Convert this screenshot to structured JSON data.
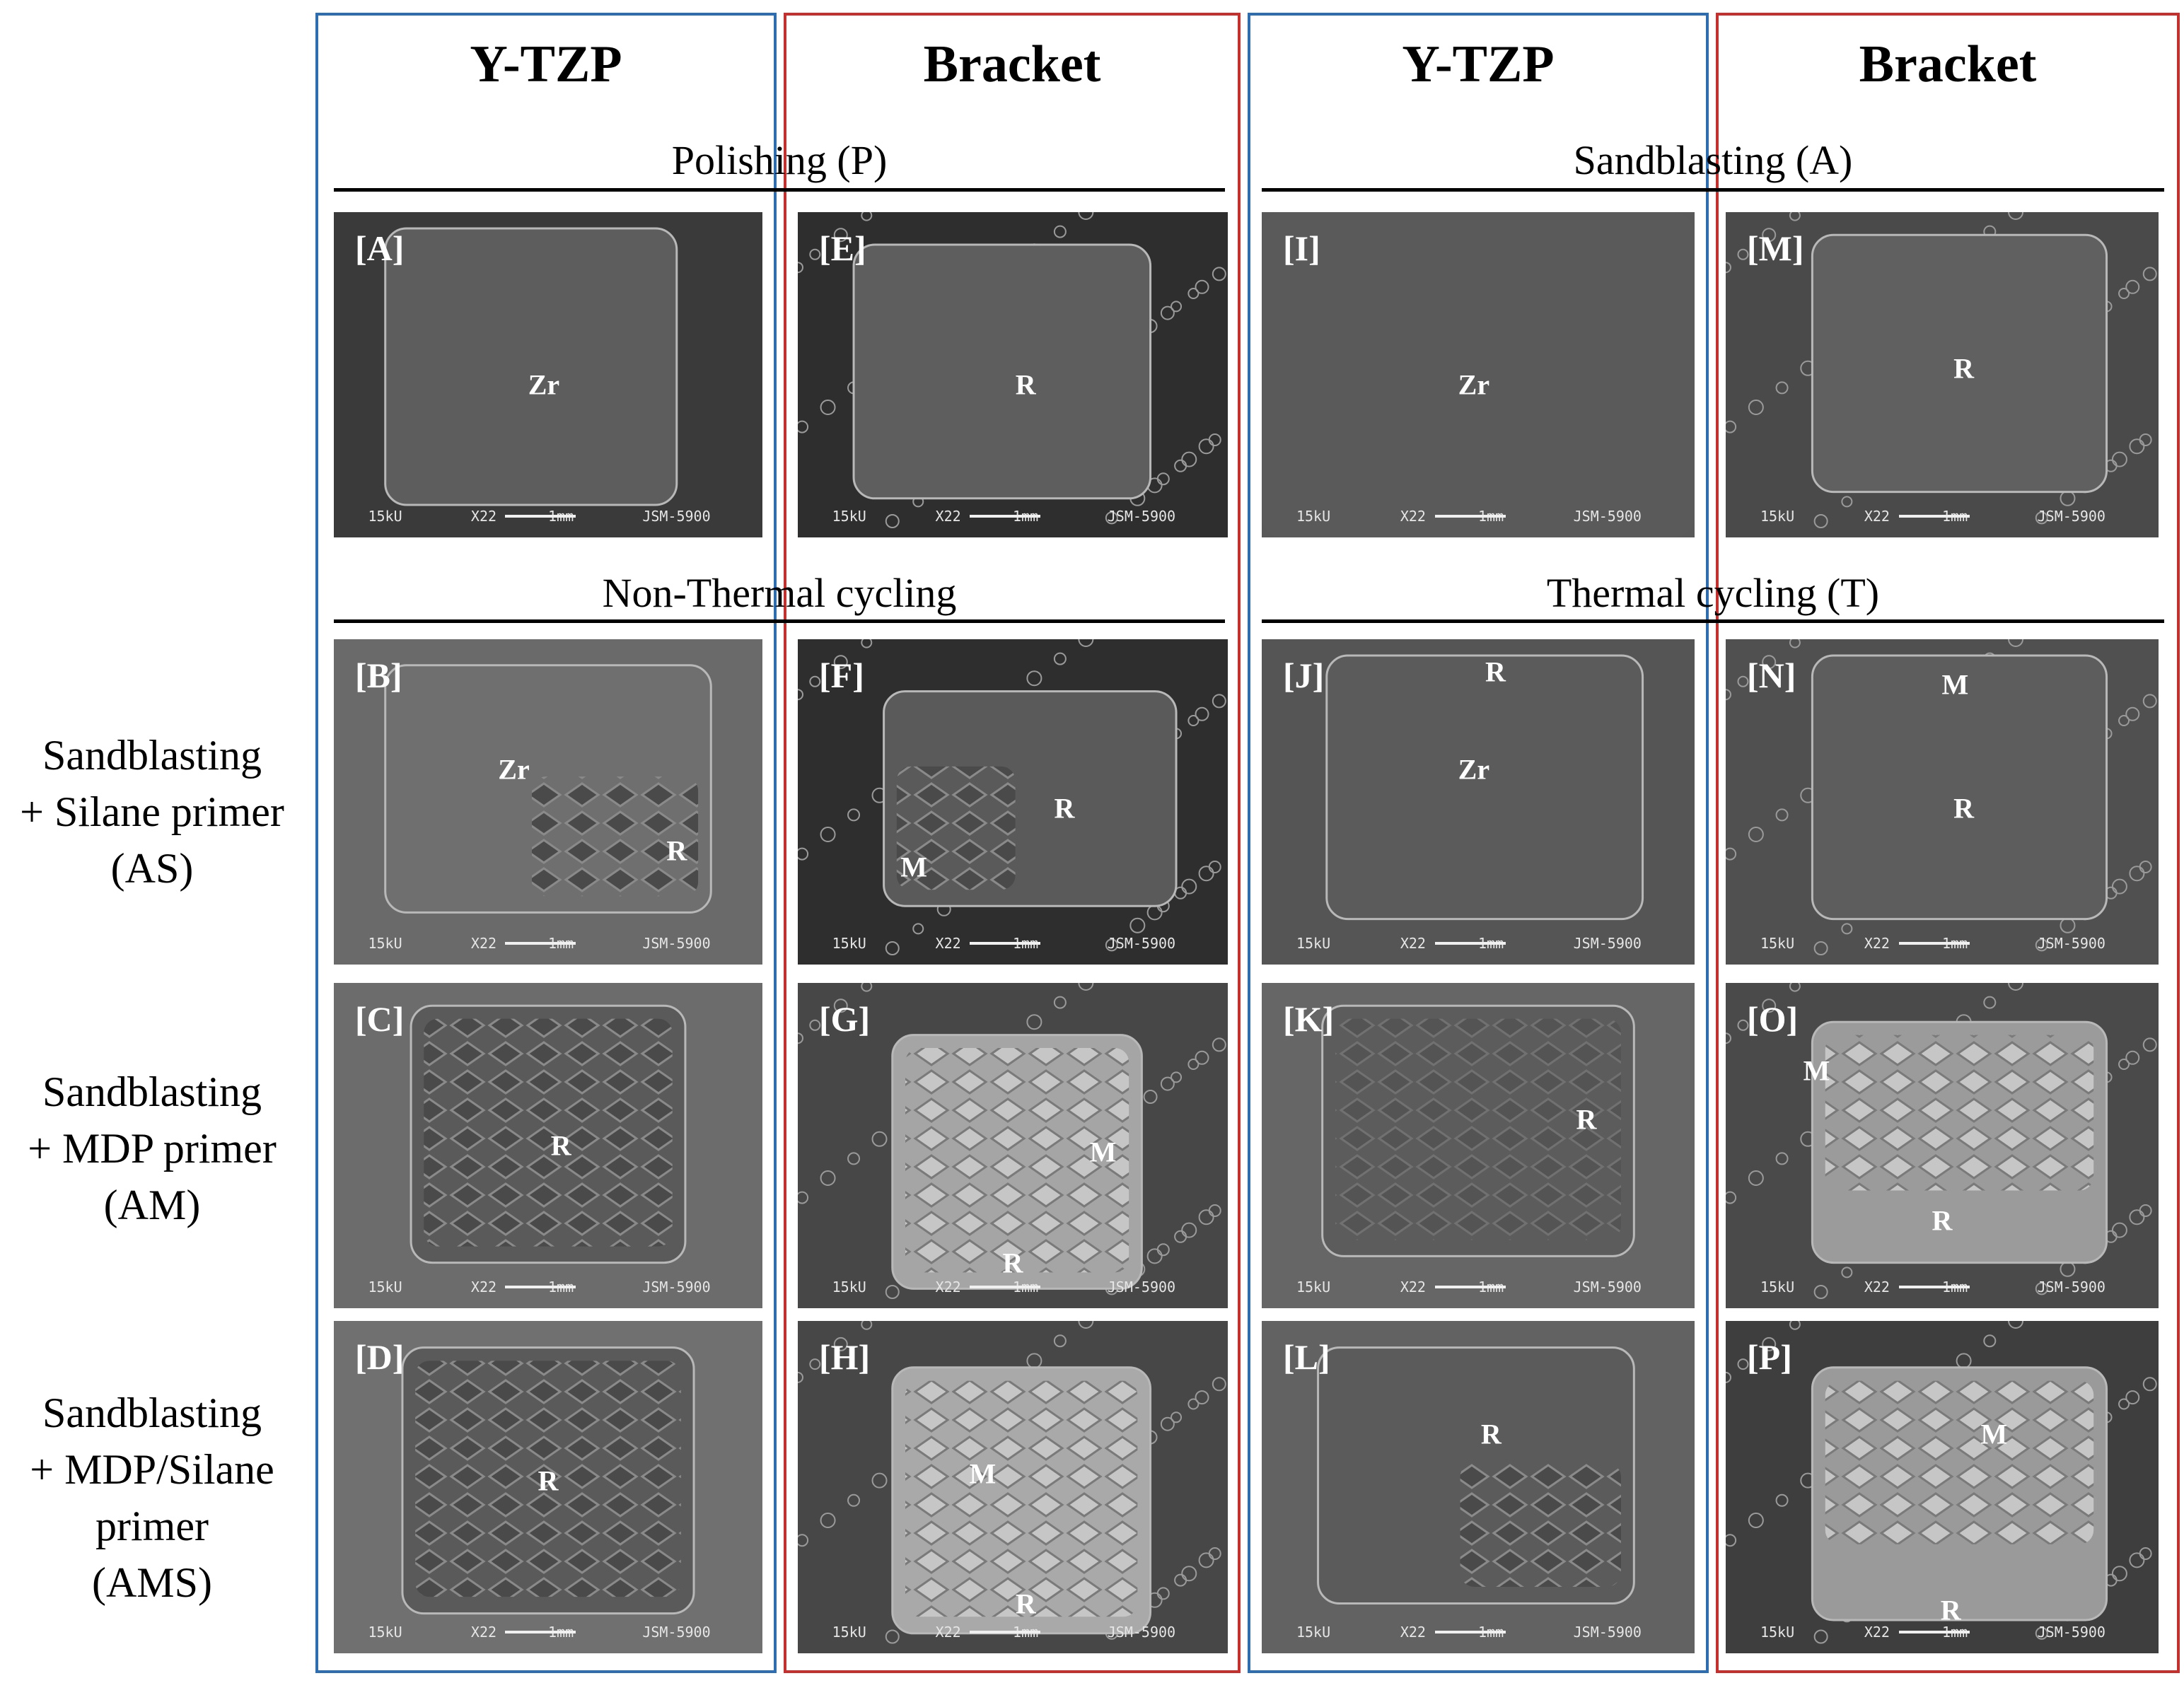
{
  "columns": [
    {
      "title": "Y-TZP"
    },
    {
      "title": "Bracket"
    },
    {
      "title": "Y-TZP"
    },
    {
      "title": "Bracket"
    }
  ],
  "sections": {
    "left_top": "Polishing (P)",
    "right_top": "Sandblasting (A)",
    "left_mid": "Non-Thermal cycling",
    "right_mid": "Thermal cycling (T)"
  },
  "row_labels": [
    {
      "lines": [
        "Sandblasting",
        "+ Silane primer",
        "(AS)"
      ]
    },
    {
      "lines": [
        "Sandblasting",
        "+ MDP primer",
        "(AM)"
      ]
    },
    {
      "lines": [
        "Sandblasting",
        "+ MDP/Silane",
        "primer",
        "(AMS)"
      ]
    }
  ],
  "footer": {
    "kv": "15kU",
    "mag": "X22",
    "scale": "1mm",
    "instrument": "JSM-5900"
  },
  "panels": [
    {
      "id": "A",
      "label": "[A]",
      "regions": [
        {
          "text": "Zr"
        }
      ]
    },
    {
      "id": "B",
      "label": "[B]",
      "regions": [
        {
          "text": "Zr"
        },
        {
          "text": "R"
        }
      ]
    },
    {
      "id": "C",
      "label": "[C]",
      "regions": [
        {
          "text": "R"
        }
      ]
    },
    {
      "id": "D",
      "label": "[D]",
      "regions": [
        {
          "text": "R"
        }
      ]
    },
    {
      "id": "E",
      "label": "[E]",
      "regions": [
        {
          "text": "R"
        }
      ]
    },
    {
      "id": "F",
      "label": "[F]",
      "regions": [
        {
          "text": "R"
        },
        {
          "text": "M"
        }
      ]
    },
    {
      "id": "G",
      "label": "[G]",
      "regions": [
        {
          "text": "M"
        },
        {
          "text": "R"
        }
      ]
    },
    {
      "id": "H",
      "label": "[H]",
      "regions": [
        {
          "text": "M"
        },
        {
          "text": "R"
        }
      ]
    },
    {
      "id": "I",
      "label": "[I]",
      "regions": [
        {
          "text": "Zr"
        }
      ]
    },
    {
      "id": "J",
      "label": "[J]",
      "regions": [
        {
          "text": "R"
        },
        {
          "text": "Zr"
        }
      ]
    },
    {
      "id": "K",
      "label": "[K]",
      "regions": [
        {
          "text": "R"
        }
      ]
    },
    {
      "id": "L",
      "label": "[L]",
      "regions": [
        {
          "text": "R"
        }
      ]
    },
    {
      "id": "M",
      "label": "[M]",
      "regions": [
        {
          "text": "R"
        }
      ]
    },
    {
      "id": "N",
      "label": "[N]",
      "regions": [
        {
          "text": "M"
        },
        {
          "text": "R"
        }
      ]
    },
    {
      "id": "O",
      "label": "[O]",
      "regions": [
        {
          "text": "M"
        },
        {
          "text": "R"
        }
      ]
    },
    {
      "id": "P",
      "label": "[P]",
      "regions": [
        {
          "text": "M"
        },
        {
          "text": "R"
        }
      ]
    }
  ]
}
